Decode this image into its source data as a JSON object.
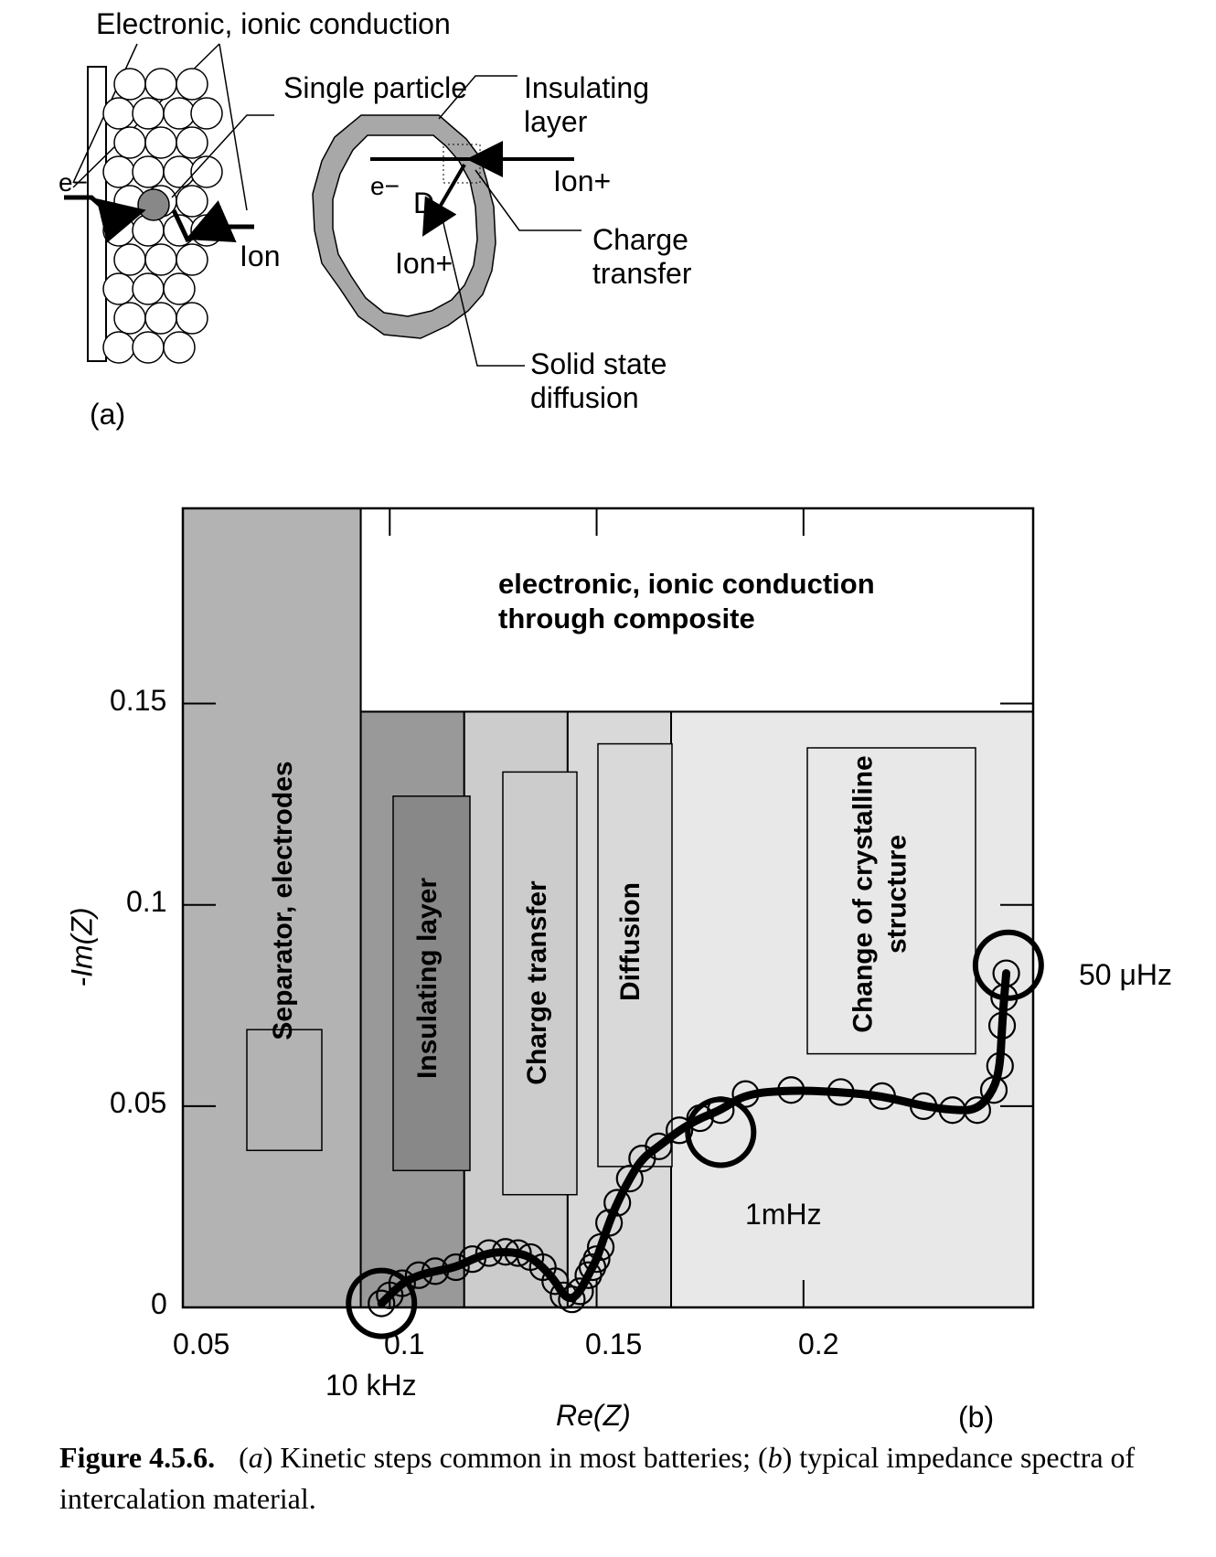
{
  "panel_a": {
    "labels": {
      "conduction": "Electronic, ionic conduction",
      "single_particle": "Single particle",
      "insulating": "Insulating\nlayer",
      "electron_left": "e−",
      "electron_particle": "e−",
      "ion_left": "Ion",
      "d": "D",
      "ion_plus_inside": "Ion+",
      "ion_plus_right": "Ion+",
      "charge_transfer": "Charge\ntransfer",
      "solid_state": "Solid state\ndiffusion",
      "panel_tag": "(a)"
    }
  },
  "chart_data": {
    "type": "scatter",
    "xlabel": "Re(Z)",
    "ylabel": "-Im(Z)",
    "xlim": [
      0.05,
      0.2555
    ],
    "ylim": [
      0,
      0.1985
    ],
    "xticks": [
      0.05,
      0.1,
      0.15,
      0.2
    ],
    "xtick_labels": [
      "0.05",
      "0.1",
      "0.15",
      "0.2"
    ],
    "yticks": [
      0,
      0.05,
      0.1,
      0.15
    ],
    "ytick_labels": [
      "0",
      "0.05",
      "0.1",
      "0.15"
    ],
    "panel_tag": "(b)",
    "regions": [
      {
        "label": "Separator, electrodes",
        "x": [
          0.045,
          0.093
        ],
        "y": [
          0,
          0.1985
        ],
        "color": "#b3b3b3"
      },
      {
        "label": "Insulating layer",
        "x": [
          0.093,
          0.118
        ],
        "y": [
          0,
          0.148
        ],
        "color": "#999999"
      },
      {
        "label": "Charge transfer",
        "x": [
          0.118,
          0.143
        ],
        "y": [
          0,
          0.148
        ],
        "color": "#cccccc"
      },
      {
        "label": "Diffusion",
        "x": [
          0.143,
          0.168
        ],
        "y": [
          0,
          0.148
        ],
        "color": "#d9d9d9"
      },
      {
        "label": "Change of crystalline structure",
        "x": [
          0.168,
          0.2555
        ],
        "y": [
          0,
          0.148
        ],
        "color": "#e8e8e8"
      },
      {
        "label": "electronic, ionic conduction through composite",
        "x": [
          0.093,
          0.2555
        ],
        "y": [
          0.148,
          0.1985
        ],
        "color": "#ffffff"
      }
    ],
    "series": [
      {
        "x": [
          0.098,
          0.1,
          0.103,
          0.107,
          0.111,
          0.116,
          0.12,
          0.124,
          0.128,
          0.131,
          0.134,
          0.137,
          0.14,
          0.142,
          0.144,
          0.146,
          0.148,
          0.149,
          0.15,
          0.151,
          0.153,
          0.155,
          0.158,
          0.161,
          0.165,
          0.17,
          0.175,
          0.18,
          0.186,
          0.197,
          0.209,
          0.219,
          0.229,
          0.236,
          0.242,
          0.246,
          0.2475,
          0.248,
          0.2485,
          0.249
        ],
        "y": [
          0.001,
          0.003,
          0.006,
          0.008,
          0.009,
          0.01,
          0.012,
          0.0135,
          0.0138,
          0.0135,
          0.0125,
          0.01,
          0.0065,
          0.003,
          0.002,
          0.004,
          0.008,
          0.01,
          0.012,
          0.015,
          0.021,
          0.026,
          0.032,
          0.037,
          0.04,
          0.044,
          0.047,
          0.049,
          0.053,
          0.054,
          0.0535,
          0.0525,
          0.05,
          0.049,
          0.049,
          0.054,
          0.06,
          0.07,
          0.077,
          0.083
        ]
      }
    ],
    "frequency_markers": [
      {
        "label": "10 kHz",
        "x": 0.098,
        "y": 0.001
      },
      {
        "label": "1mHz",
        "x": 0.18,
        "y": 0.0435
      },
      {
        "label": "50 μHz",
        "x": 0.2495,
        "y": 0.085
      }
    ]
  },
  "caption": {
    "figure_label": "Figure 4.5.6.",
    "text_1": "(",
    "text_a": "a",
    "text_2": ") Kinetic steps common in most batteries; (",
    "text_b": "b",
    "text_3": ") typical impedance spectra of intercalation material."
  }
}
